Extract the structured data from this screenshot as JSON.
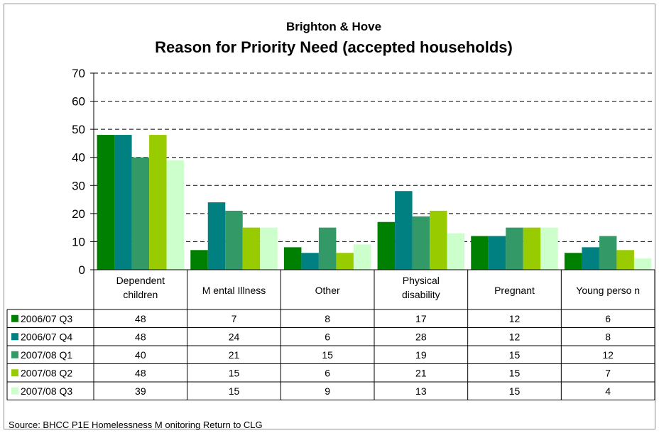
{
  "chart_data": {
    "type": "bar",
    "title": "Brighton & Hove",
    "subtitle": "Reason for Priority Need (accepted households)",
    "categories": [
      "Dependent children",
      "Mental Illness",
      "Other",
      "Physical disability",
      "Pregnant",
      "Young person"
    ],
    "category_lines": [
      [
        "Dependent",
        "children"
      ],
      [
        "M ental Illness"
      ],
      [
        "Other"
      ],
      [
        "Physical",
        "disability"
      ],
      [
        "Pregnant"
      ],
      [
        "Young perso n"
      ]
    ],
    "series": [
      {
        "name": "2006/07 Q3",
        "color": "#008000",
        "values": [
          48,
          7,
          8,
          17,
          12,
          6
        ]
      },
      {
        "name": "2006/07 Q4",
        "color": "#008080",
        "values": [
          48,
          24,
          6,
          28,
          12,
          8
        ]
      },
      {
        "name": "2007/08 Q1",
        "color": "#339966",
        "values": [
          40,
          21,
          15,
          19,
          15,
          12
        ]
      },
      {
        "name": "2007/08 Q2",
        "color": "#99CC00",
        "values": [
          48,
          15,
          6,
          21,
          15,
          7
        ]
      },
      {
        "name": "2007/08 Q3",
        "color": "#CCFFCC",
        "values": [
          39,
          15,
          9,
          13,
          15,
          4
        ]
      }
    ],
    "ylim": [
      0,
      70
    ],
    "yticks": [
      0,
      10,
      20,
      30,
      40,
      50,
      60,
      70
    ],
    "gridlines": "dashed",
    "legend": "data-table"
  },
  "source": "Source: BHCC P1E Homelessness M onitoring Return to CLG"
}
